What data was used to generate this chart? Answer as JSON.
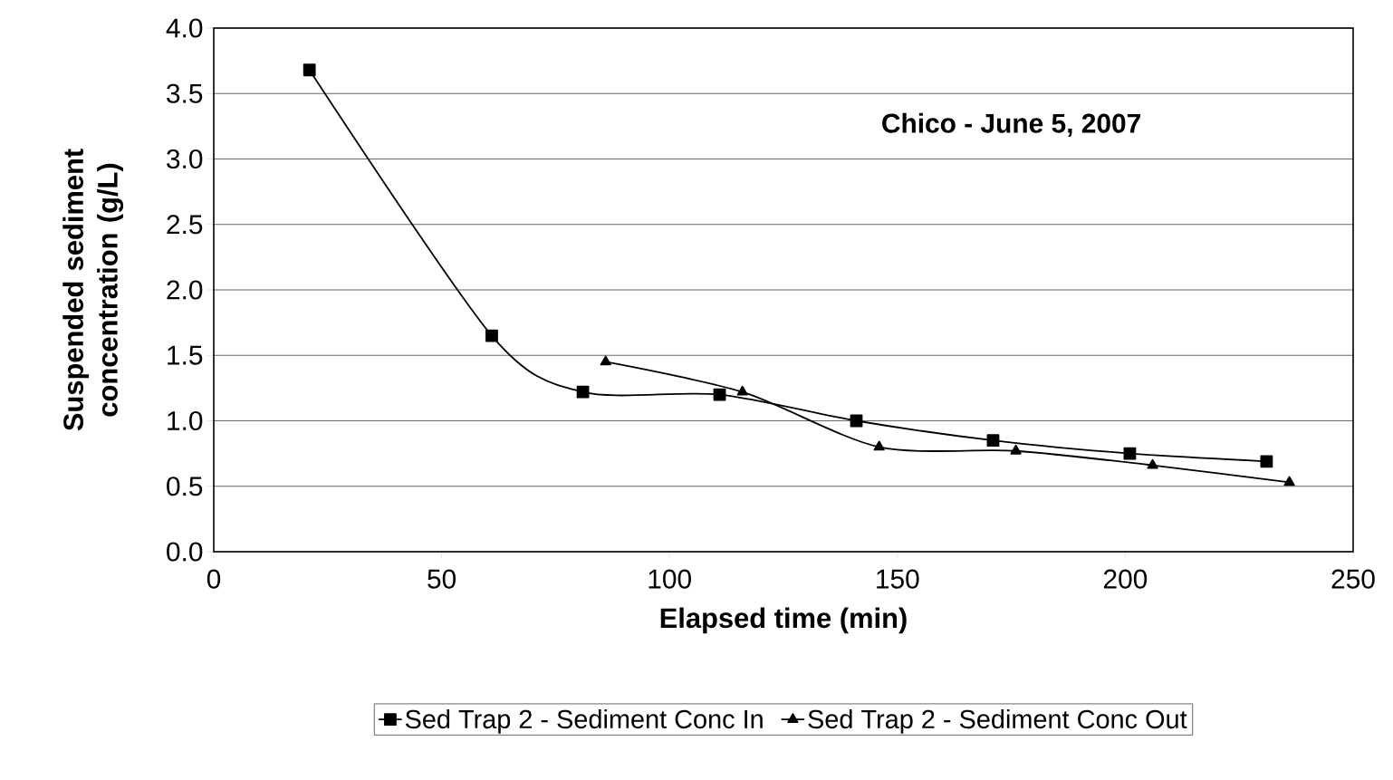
{
  "chart_data": {
    "type": "line",
    "xlabel": "Elapsed time (min)",
    "ylabel": "Suspended sediment concentration (g/L)",
    "annotations": [
      "Chico - June 5, 2007"
    ],
    "series": [
      {
        "name": "Sed Trap 2 - Sediment Conc In",
        "color": "#000000",
        "marker": "square",
        "x": [
          21,
          61,
          81,
          111,
          141,
          171,
          201,
          231
        ],
        "values": [
          3.68,
          1.65,
          1.22,
          1.2,
          1.0,
          0.85,
          0.75,
          0.69
        ]
      },
      {
        "name": "Sed Trap 2 - Sediment Conc Out",
        "color": "#000000",
        "marker": "triangle",
        "x": [
          86,
          116,
          146,
          176,
          206,
          236
        ],
        "values": [
          1.45,
          1.22,
          0.8,
          0.77,
          0.66,
          0.53
        ]
      }
    ],
    "xlim": [
      0,
      250
    ],
    "xticks": [
      0,
      50,
      100,
      150,
      200,
      250
    ],
    "ylim": [
      0,
      4
    ],
    "yticks": [
      {
        "value": 0,
        "label": "0.0"
      },
      {
        "value": 0.5,
        "label": "0.5"
      },
      {
        "value": 1,
        "label": "1.0"
      },
      {
        "value": 1.5,
        "label": "1.5"
      },
      {
        "value": 2,
        "label": "2.0"
      },
      {
        "value": 2.5,
        "label": "2.5"
      },
      {
        "value": 3,
        "label": "3.0"
      },
      {
        "value": 3.5,
        "label": "3.5"
      },
      {
        "value": 4,
        "label": "4.0"
      }
    ],
    "grid": "y",
    "legend": "bottom"
  }
}
